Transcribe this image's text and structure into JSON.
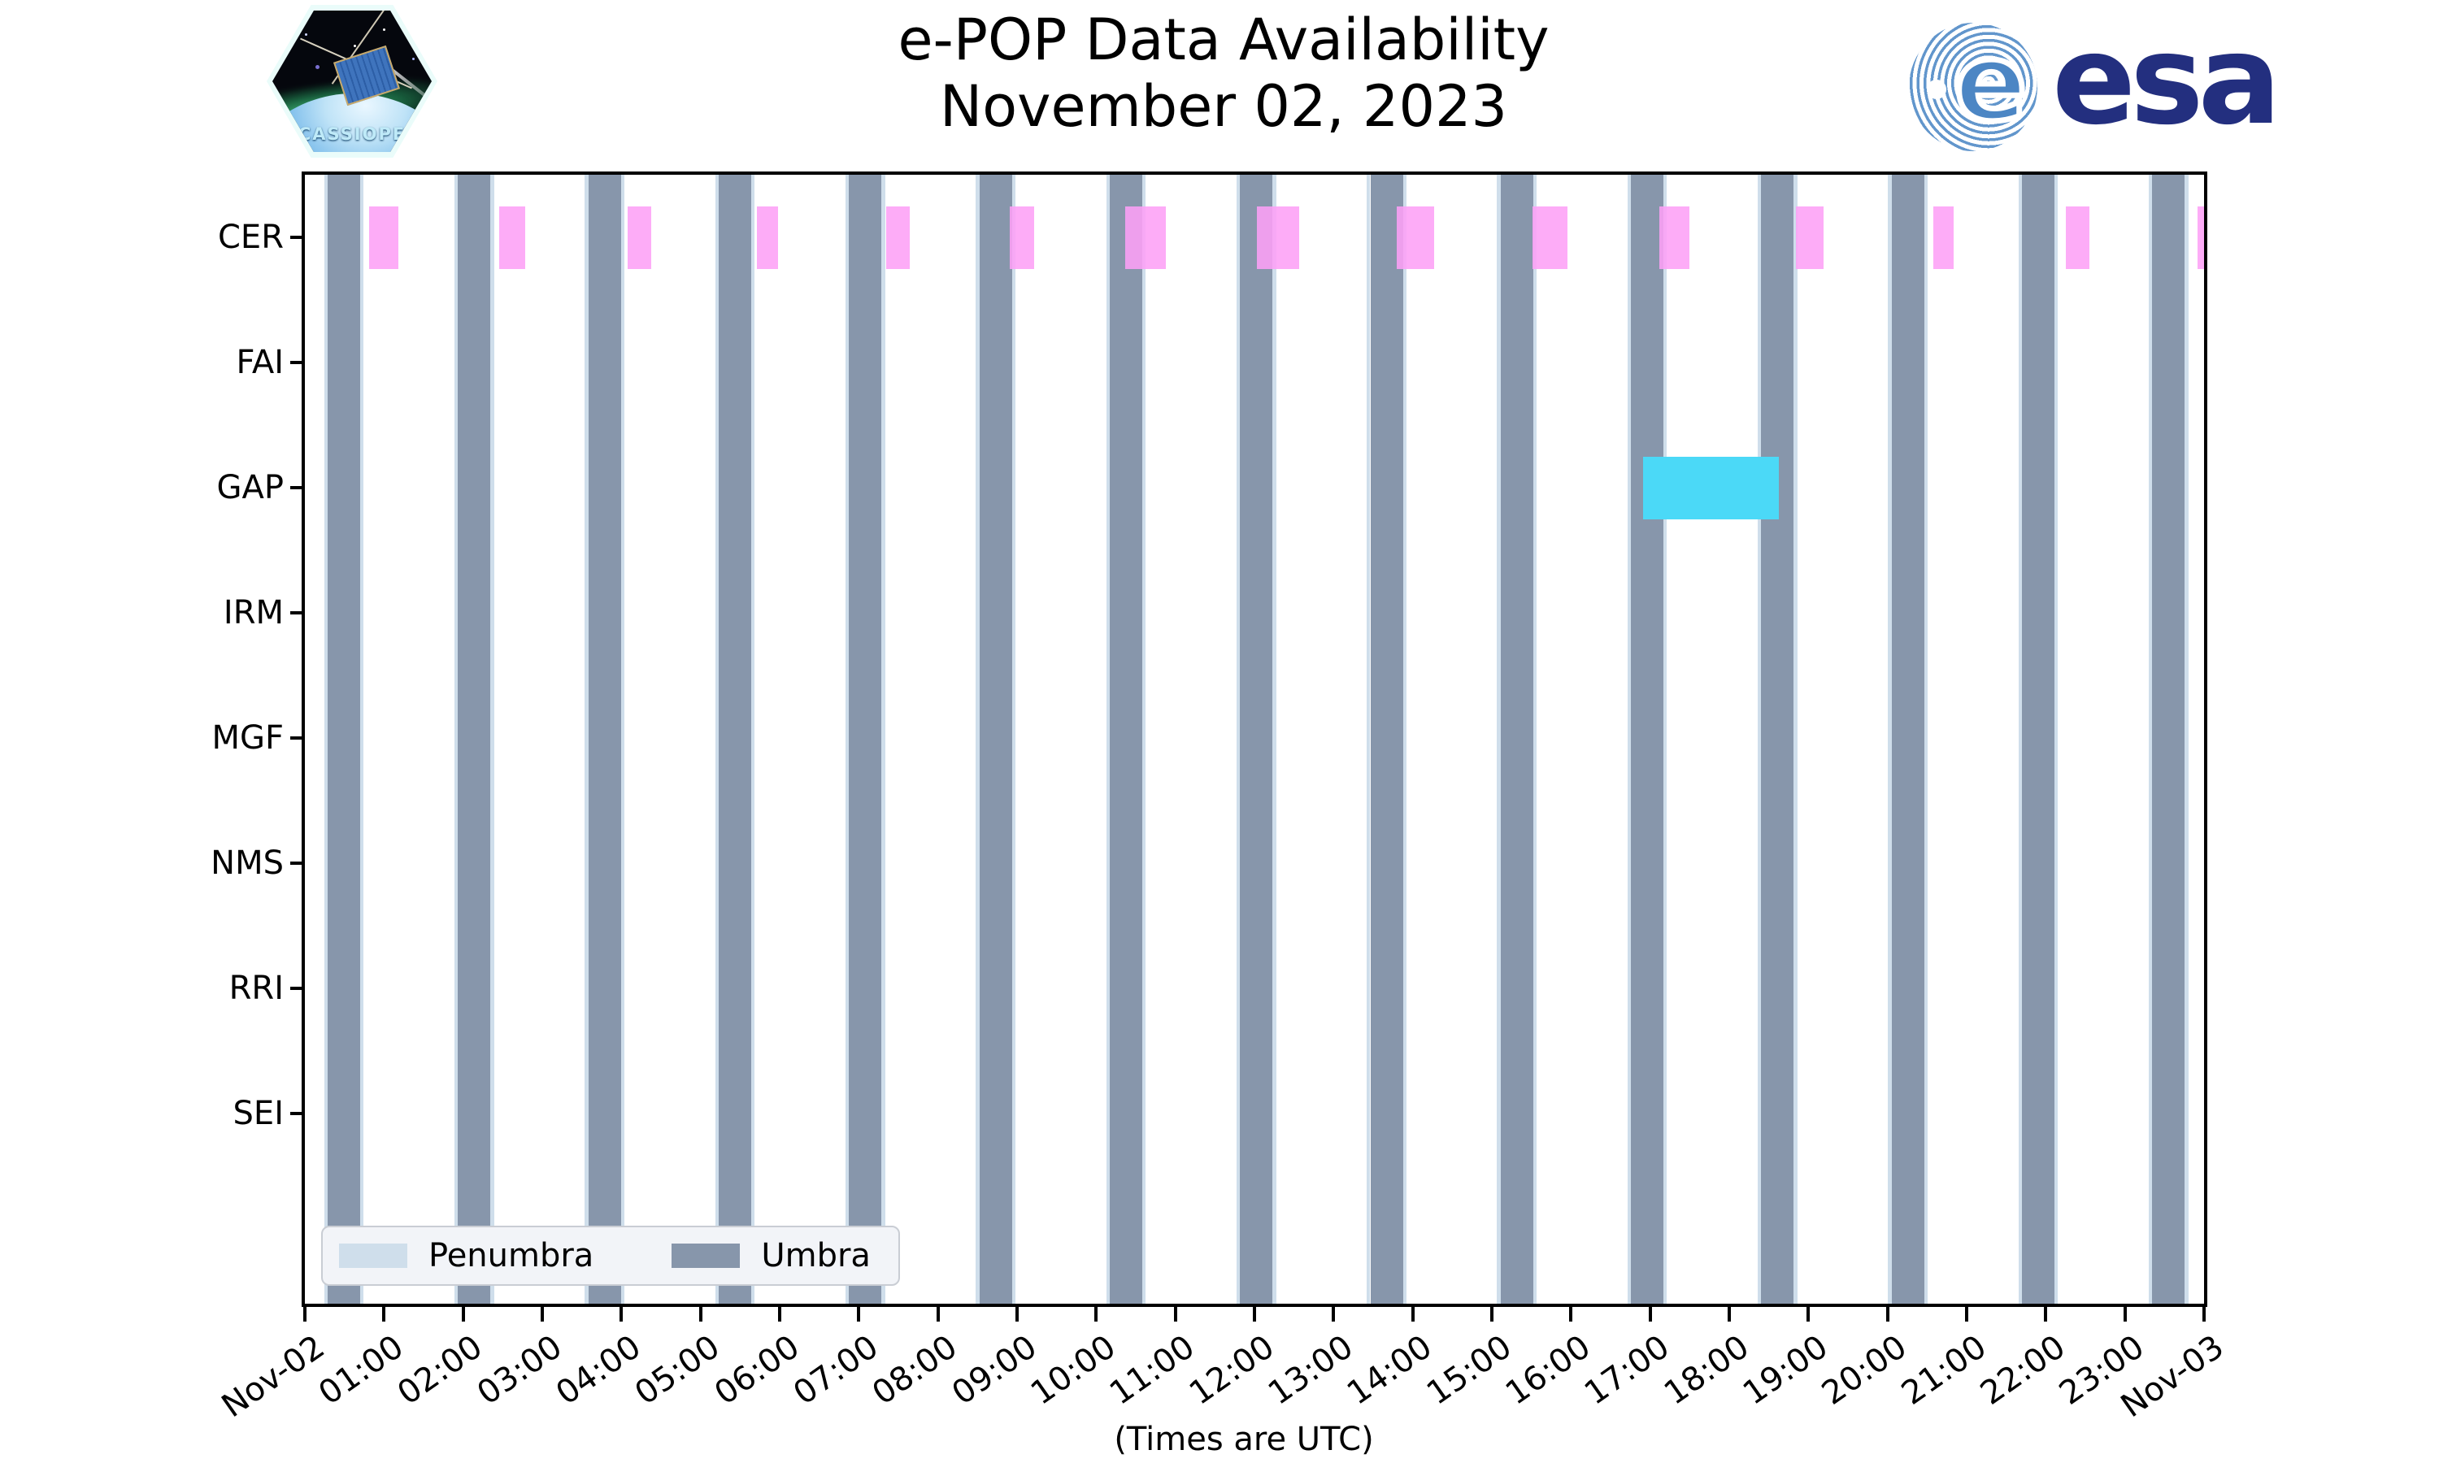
{
  "branding": {
    "cassiope_patch_label": "CASSIOPE",
    "esa_logo_text": "esa"
  },
  "chart_data": {
    "type": "availability-timeline",
    "title": "e-POP Data Availability",
    "subtitle": "November 02, 2023",
    "xlabel": "(Times are UTC)",
    "x_range_hours": [
      0,
      24
    ],
    "x_tick_labels": [
      "Nov-02",
      "01:00",
      "02:00",
      "03:00",
      "04:00",
      "05:00",
      "06:00",
      "07:00",
      "08:00",
      "09:00",
      "10:00",
      "11:00",
      "12:00",
      "13:00",
      "14:00",
      "15:00",
      "16:00",
      "17:00",
      "18:00",
      "19:00",
      "20:00",
      "21:00",
      "22:00",
      "23:00",
      "Nov-03"
    ],
    "y_categories": [
      "CER",
      "FAI",
      "GAP",
      "IRM",
      "MGF",
      "NMS",
      "RRI",
      "SEI"
    ],
    "series": [
      {
        "name": "CER",
        "color": "rgba(253,160,246,0.88)",
        "intervals_hours": [
          [
            0.81,
            1.18
          ],
          [
            2.45,
            2.78
          ],
          [
            4.08,
            4.38
          ],
          [
            5.71,
            5.98
          ],
          [
            7.35,
            7.64
          ],
          [
            8.91,
            9.22
          ],
          [
            10.37,
            10.88
          ],
          [
            12.03,
            12.57
          ],
          [
            13.8,
            14.27
          ],
          [
            15.51,
            15.96
          ],
          [
            17.12,
            17.5
          ],
          [
            18.84,
            19.19
          ],
          [
            20.58,
            20.84
          ],
          [
            22.25,
            22.55
          ],
          [
            23.92,
            24.0
          ]
        ]
      },
      {
        "name": "FAI",
        "color": "rgba(253,160,246,0.88)",
        "intervals_hours": []
      },
      {
        "name": "GAP",
        "color": "#4bd9f7",
        "intervals_hours": [
          [
            16.91,
            18.63
          ]
        ]
      },
      {
        "name": "IRM",
        "color": "#4bd9f7",
        "intervals_hours": []
      },
      {
        "name": "MGF",
        "color": "#4bd9f7",
        "intervals_hours": []
      },
      {
        "name": "NMS",
        "color": "#4bd9f7",
        "intervals_hours": []
      },
      {
        "name": "RRI",
        "color": "#4bd9f7",
        "intervals_hours": []
      },
      {
        "name": "SEI",
        "color": "#4bd9f7",
        "intervals_hours": []
      }
    ],
    "shadow_bands": {
      "umbra": {
        "color": "#8796ab",
        "intervals_hours": [
          [
            0.288,
            0.699
          ],
          [
            1.935,
            2.346
          ],
          [
            3.582,
            3.993
          ],
          [
            5.229,
            5.64
          ],
          [
            6.876,
            7.287
          ],
          [
            8.523,
            8.934
          ],
          [
            10.17,
            10.581
          ],
          [
            11.817,
            12.228
          ],
          [
            13.464,
            13.875
          ],
          [
            15.111,
            15.522
          ],
          [
            16.758,
            17.169
          ],
          [
            18.405,
            18.816
          ],
          [
            20.052,
            20.463
          ],
          [
            21.699,
            22.11
          ],
          [
            23.346,
            23.757
          ]
        ]
      },
      "penumbra": {
        "color": "#cfdeeb",
        "edge_width_hours": 0.045
      }
    },
    "legend": {
      "items": [
        {
          "label": "Penumbra",
          "color": "#cfdeeb"
        },
        {
          "label": "Umbra",
          "color": "#8796ab"
        }
      ]
    }
  }
}
